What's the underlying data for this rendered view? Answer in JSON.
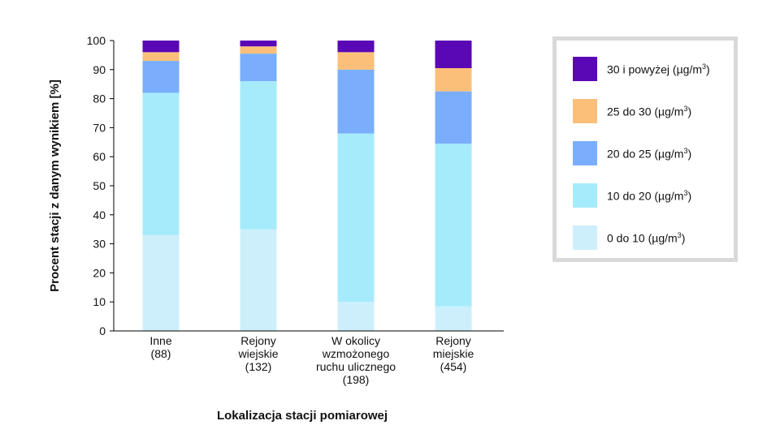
{
  "chart_data": {
    "type": "bar",
    "stacked": true,
    "ylabel": "Procent stacji z danym wynikiem [%]",
    "xlabel": "Lokalizacja stacji pomiarowej",
    "ylim": [
      0,
      100
    ],
    "yticks": [
      0,
      10,
      20,
      30,
      40,
      50,
      60,
      70,
      80,
      90,
      100
    ],
    "categories": [
      [
        "Inne",
        "(88)"
      ],
      [
        "Rejony",
        "wiejskie",
        "(132)"
      ],
      [
        "W okolicy",
        "wzmożonego",
        "ruchu ulicznego",
        "(198)"
      ],
      [
        "Rejony",
        "miejskie",
        "(454)"
      ]
    ],
    "series": [
      {
        "name": "0 do 10 (µg/m3)",
        "label_base": "0 do 10 (µg/m",
        "label_end": ")",
        "color": "#cdeffc",
        "values": [
          33,
          35,
          10,
          8.5
        ]
      },
      {
        "name": "10 do 20 (µg/m3)",
        "label_base": "10 do 20 (µg/m",
        "label_end": ")",
        "color": "#a6ebfb",
        "values": [
          49,
          51,
          58,
          56
        ]
      },
      {
        "name": "20 do 25 (µg/m3)",
        "label_base": "20 do 25 (µg/m",
        "label_end": ")",
        "color": "#7aaefc",
        "values": [
          11,
          9.5,
          22,
          18
        ]
      },
      {
        "name": "25 do 30 (µg/m3)",
        "label_base": "25 do 30 (µg/m",
        "label_end": ")",
        "color": "#fbbf7a",
        "values": [
          3,
          2.5,
          6,
          8
        ]
      },
      {
        "name": "30 i powyżej (µg/m3)",
        "label_base": "30 i powyżej (µg/m",
        "label_end": ")",
        "color": "#5a07b6",
        "values": [
          4,
          2,
          4,
          9.5
        ]
      }
    ],
    "legend_position": "right",
    "grid": false
  }
}
